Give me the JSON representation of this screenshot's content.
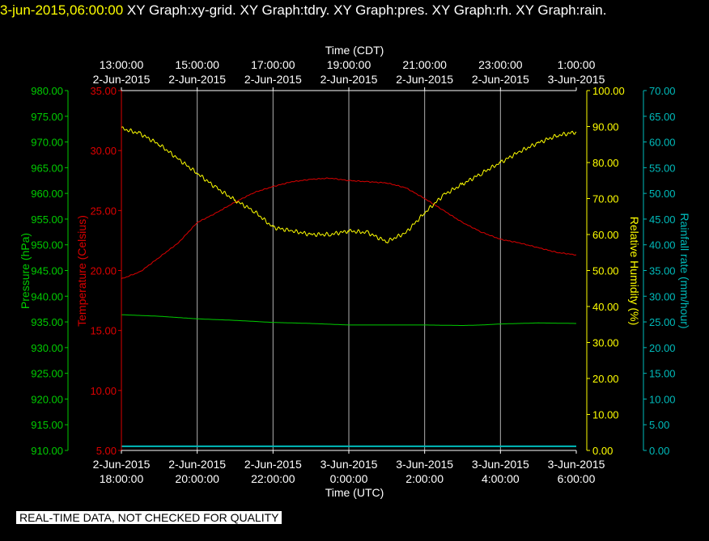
{
  "header": {
    "timestamp": "3-jun-2015,06:00:00",
    "graph_titles": [
      "XY Graph:xy-grid.",
      "XY Graph:tdry.",
      "XY Graph:pres.",
      "XY Graph:rh.",
      "XY Graph:rain."
    ]
  },
  "banner": "REAL-TIME DATA, NOT CHECKED FOR QUALITY",
  "colors": {
    "pressure": "#00cc00",
    "temperature": "#dd0000",
    "humidity": "#ffff00",
    "rain": "#00bbbb",
    "grid": "#b0b0b0",
    "background": "#000000"
  },
  "chart_data": {
    "type": "line",
    "x_top": {
      "label": "Time (CDT)",
      "ticks": [
        [
          "13:00:00",
          "2-Jun-2015"
        ],
        [
          "15:00:00",
          "2-Jun-2015"
        ],
        [
          "17:00:00",
          "2-Jun-2015"
        ],
        [
          "19:00:00",
          "2-Jun-2015"
        ],
        [
          "21:00:00",
          "2-Jun-2015"
        ],
        [
          "23:00:00",
          "2-Jun-2015"
        ],
        [
          "1:00:00",
          "3-Jun-2015"
        ]
      ]
    },
    "x_bottom": {
      "label": "Time (UTC)",
      "ticks": [
        [
          "2-Jun-2015",
          "18:00:00"
        ],
        [
          "2-Jun-2015",
          "20:00:00"
        ],
        [
          "2-Jun-2015",
          "22:00:00"
        ],
        [
          "3-Jun-2015",
          "0:00:00"
        ],
        [
          "3-Jun-2015",
          "2:00:00"
        ],
        [
          "3-Jun-2015",
          "4:00:00"
        ],
        [
          "3-Jun-2015",
          "6:00:00"
        ]
      ]
    },
    "x_range_hours_utc": [
      18,
      30
    ],
    "grid": true,
    "axes": {
      "pressure": {
        "label": "Pressure (hPa)",
        "range": [
          910,
          980
        ],
        "ticks": [
          "910.00",
          "915.00",
          "920.00",
          "925.00",
          "930.00",
          "935.00",
          "940.00",
          "945.00",
          "950.00",
          "955.00",
          "960.00",
          "965.00",
          "970.00",
          "975.00",
          "980.00"
        ]
      },
      "temperature": {
        "label": "Temperature (Celsius)",
        "range": [
          5,
          35
        ],
        "ticks": [
          "5.00",
          "10.00",
          "15.00",
          "20.00",
          "25.00",
          "30.00",
          "35.00"
        ]
      },
      "humidity": {
        "label": "Relative Humidity (%)",
        "range": [
          0,
          100
        ],
        "ticks": [
          "0.00",
          "10.00",
          "20.00",
          "30.00",
          "40.00",
          "50.00",
          "60.00",
          "70.00",
          "80.00",
          "90.00",
          "100.00"
        ]
      },
      "rain": {
        "label": "Rainfall rate (mm/hour)",
        "range": [
          0,
          70
        ],
        "ticks": [
          "0.00",
          "5.00",
          "10.00",
          "15.00",
          "20.00",
          "25.00",
          "30.00",
          "35.00",
          "40.00",
          "45.00",
          "50.00",
          "55.00",
          "60.00",
          "65.00",
          "70.00"
        ]
      }
    },
    "series": [
      {
        "key": "temperature",
        "axis": "temperature",
        "x": [
          18.0,
          18.5,
          19.0,
          19.5,
          20.0,
          20.5,
          21.0,
          21.5,
          22.0,
          22.5,
          23.0,
          23.5,
          24.0,
          24.5,
          25.0,
          25.5,
          26.0,
          26.5,
          27.0,
          27.5,
          28.0,
          28.5,
          29.0,
          29.5,
          30.0
        ],
        "y": [
          19.3,
          19.9,
          21.1,
          22.3,
          24.0,
          24.8,
          25.7,
          26.5,
          27.0,
          27.4,
          27.6,
          27.7,
          27.5,
          27.4,
          27.3,
          26.9,
          26.0,
          25.0,
          24.0,
          23.2,
          22.6,
          22.3,
          21.9,
          21.5,
          21.3
        ]
      },
      {
        "key": "humidity",
        "axis": "humidity",
        "x": [
          18.0,
          18.5,
          19.0,
          19.5,
          20.0,
          20.5,
          21.0,
          21.5,
          22.0,
          22.5,
          23.0,
          23.5,
          24.0,
          24.5,
          25.0,
          25.5,
          26.0,
          26.5,
          27.0,
          27.5,
          28.0,
          28.5,
          29.0,
          29.5,
          30.0
        ],
        "y": [
          89.5,
          88.0,
          85.0,
          81.0,
          77.0,
          73.0,
          69.5,
          66.5,
          62.0,
          61.0,
          60.0,
          60.0,
          61.0,
          60.5,
          58.0,
          60.5,
          66.0,
          71.0,
          74.0,
          77.0,
          80.0,
          83.0,
          85.5,
          87.5,
          88.5
        ]
      },
      {
        "key": "pressure",
        "axis": "pressure",
        "x": [
          18.0,
          19.0,
          20.0,
          21.0,
          22.0,
          23.0,
          24.0,
          25.0,
          26.0,
          27.0,
          27.5,
          28.0,
          29.0,
          30.0
        ],
        "y": [
          936.4,
          936.1,
          935.6,
          935.3,
          934.9,
          934.7,
          934.4,
          934.4,
          934.4,
          934.3,
          934.4,
          934.6,
          934.8,
          934.7
        ]
      },
      {
        "key": "rain",
        "axis": "rain",
        "x": [
          18.0,
          30.0
        ],
        "y": [
          0.8,
          0.8
        ]
      }
    ]
  }
}
